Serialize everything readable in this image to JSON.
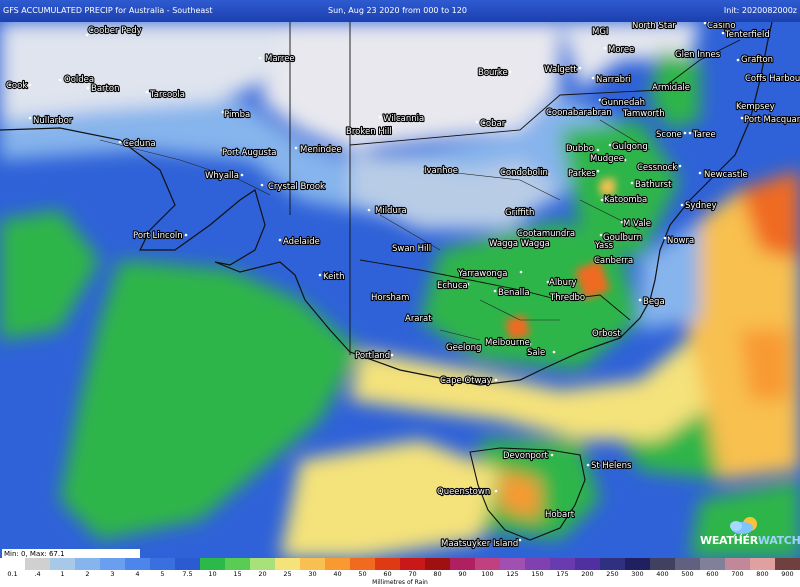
{
  "header": {
    "title": "GFS ACCUMULATED PRECIP for Australia - Southeast",
    "period": "Sun, Aug 23 2020 from 000 to 120",
    "init": "Init: 2020082000z"
  },
  "stats": {
    "minmax": "Min: 0, Max: 67.1"
  },
  "legend": {
    "unit": "Millimetres of Rain",
    "items": [
      {
        "label": "0.1",
        "color": "#ffffff"
      },
      {
        "label": ".4",
        "color": "#d0d0d0"
      },
      {
        "label": "1",
        "color": "#a8c8e8"
      },
      {
        "label": "2",
        "color": "#86b4ec"
      },
      {
        "label": "3",
        "color": "#6a9ff0"
      },
      {
        "label": "4",
        "color": "#4d86ea"
      },
      {
        "label": "5",
        "color": "#3a6fe0"
      },
      {
        "label": "7.5",
        "color": "#2a5bd0"
      },
      {
        "label": "10",
        "color": "#2db84a"
      },
      {
        "label": "15",
        "color": "#58cc55"
      },
      {
        "label": "20",
        "color": "#a8e07a"
      },
      {
        "label": "25",
        "color": "#f4e27a"
      },
      {
        "label": "30",
        "color": "#f8c050"
      },
      {
        "label": "40",
        "color": "#f89a30"
      },
      {
        "label": "50",
        "color": "#f06a20"
      },
      {
        "label": "60",
        "color": "#e03a14"
      },
      {
        "label": "70",
        "color": "#c81818"
      },
      {
        "label": "80",
        "color": "#a01010"
      },
      {
        "label": "90",
        "color": "#b02060"
      },
      {
        "label": "100",
        "color": "#c04080"
      },
      {
        "label": "125",
        "color": "#a050b0"
      },
      {
        "label": "150",
        "color": "#8040b0"
      },
      {
        "label": "175",
        "color": "#6a3ab0"
      },
      {
        "label": "200",
        "color": "#5030a0"
      },
      {
        "label": "250",
        "color": "#303080"
      },
      {
        "label": "300",
        "color": "#202060"
      },
      {
        "label": "400",
        "color": "#404060"
      },
      {
        "label": "500",
        "color": "#606080"
      },
      {
        "label": "600",
        "color": "#808098"
      },
      {
        "label": "700",
        "color": "#c08898"
      },
      {
        "label": "800",
        "color": "#e0a0a0"
      },
      {
        "label": "900",
        "color": "#704040"
      }
    ]
  },
  "logo": {
    "part1": "WEATHER",
    "part2": "WATCH"
  },
  "places": [
    {
      "name": "Coober Pedy"
    },
    {
      "name": "Marree"
    },
    {
      "name": "Cook"
    },
    {
      "name": "Ooldea"
    },
    {
      "name": "Barton"
    },
    {
      "name": "Tarcoola"
    },
    {
      "name": "Nullarbor"
    },
    {
      "name": "Ceduna"
    },
    {
      "name": "Port Augusta"
    },
    {
      "name": "Whyalla"
    },
    {
      "name": "Crystal Brook"
    },
    {
      "name": "Port Lincoln"
    },
    {
      "name": "Adelaide"
    },
    {
      "name": "Keith"
    },
    {
      "name": "Broken Hill"
    },
    {
      "name": "Menindee"
    },
    {
      "name": "Wilcannia"
    },
    {
      "name": "Cobar"
    },
    {
      "name": "Bourke"
    },
    {
      "name": "Walgett"
    },
    {
      "name": "Moree"
    },
    {
      "name": "Narrabri"
    },
    {
      "name": "Coonabarabran"
    },
    {
      "name": "Gunnedah"
    },
    {
      "name": "Tamworth"
    },
    {
      "name": "Armidale"
    },
    {
      "name": "Glen Innes"
    },
    {
      "name": "Tenterfield"
    },
    {
      "name": "Grafton"
    },
    {
      "name": "Coffs Harbour"
    },
    {
      "name": "Kempsey"
    },
    {
      "name": "Port Macquarie"
    },
    {
      "name": "Taree"
    },
    {
      "name": "Scone"
    },
    {
      "name": "Dubbo"
    },
    {
      "name": "Mudgee"
    },
    {
      "name": "Gulgong"
    },
    {
      "name": "Cessnock"
    },
    {
      "name": "Newcastle"
    },
    {
      "name": "Bathurst"
    },
    {
      "name": "Katoomba"
    },
    {
      "name": "Sydney"
    },
    {
      "name": "M Vale"
    },
    {
      "name": "Goulburn"
    },
    {
      "name": "Yass"
    },
    {
      "name": "Nowra"
    },
    {
      "name": "Canberra"
    },
    {
      "name": "Cootamundra"
    },
    {
      "name": "Wagga Wagga"
    },
    {
      "name": "Griffith"
    },
    {
      "name": "Parkes"
    },
    {
      "name": "Condobolin"
    },
    {
      "name": "Ivanhoe"
    },
    {
      "name": "Mildura"
    },
    {
      "name": "Swan Hill"
    },
    {
      "name": "Yarrawonga"
    },
    {
      "name": "Echuca"
    },
    {
      "name": "Albury"
    },
    {
      "name": "Benalla"
    },
    {
      "name": "Thredbo"
    },
    {
      "name": "Bega"
    },
    {
      "name": "Horsham"
    },
    {
      "name": "Ararat"
    },
    {
      "name": "Portland"
    },
    {
      "name": "Geelong"
    },
    {
      "name": "Melbourne"
    },
    {
      "name": "Sale"
    },
    {
      "name": "Orbost"
    },
    {
      "name": "Cape Otway"
    },
    {
      "name": "Devonport"
    },
    {
      "name": "St Helens"
    },
    {
      "name": "Queenstown"
    },
    {
      "name": "Hobart"
    },
    {
      "name": "Maatsuyker Island"
    },
    {
      "name": "Moree"
    },
    {
      "name": "Casino"
    },
    {
      "name": "North Star"
    },
    {
      "name": "Moree"
    },
    {
      "name": "Moree"
    }
  ]
}
